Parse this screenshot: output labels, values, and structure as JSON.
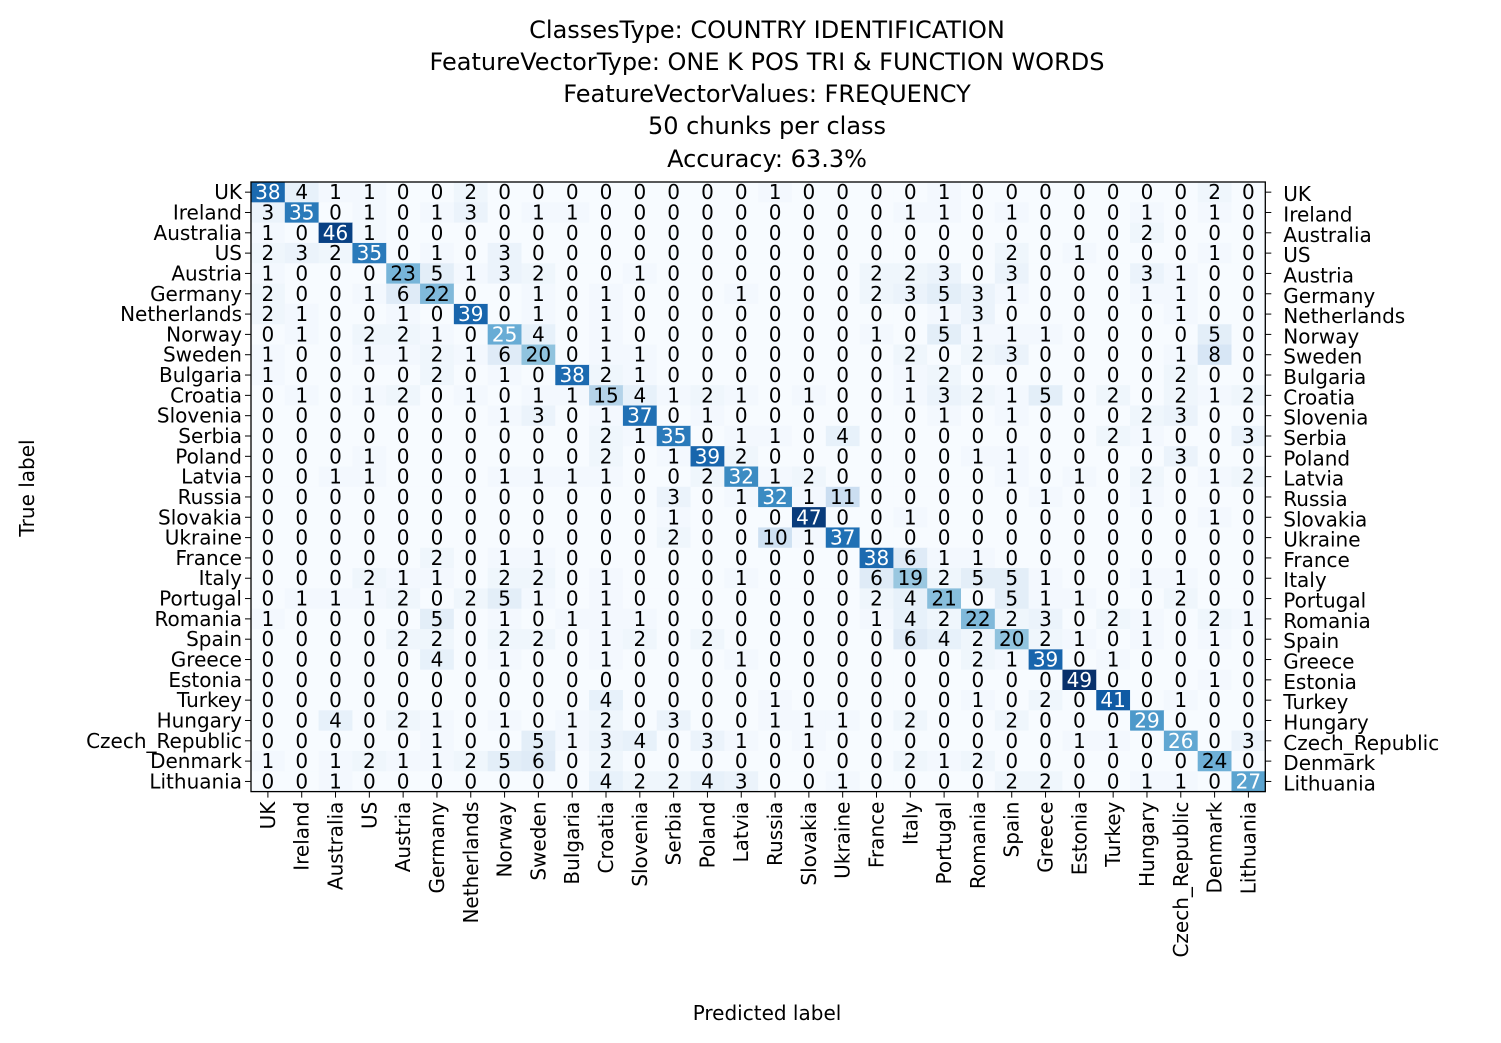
{
  "chart_data": {
    "type": "heatmap",
    "title_lines": [
      "ClassesType: COUNTRY IDENTIFICATION",
      "FeatureVectorType: ONE K POS TRI & FUNCTION WORDS",
      "FeatureVectorValues: FREQUENCY",
      "50 chunks per class",
      "Accuracy: 63.3%"
    ],
    "xlabel": "Predicted label",
    "ylabel": "True label",
    "labels": [
      "UK",
      "Ireland",
      "Australia",
      "US",
      "Austria",
      "Germany",
      "Netherlands",
      "Norway",
      "Sweden",
      "Bulgaria",
      "Croatia",
      "Slovenia",
      "Serbia",
      "Poland",
      "Latvia",
      "Russia",
      "Slovakia",
      "Ukraine",
      "France",
      "Italy",
      "Portugal",
      "Romania",
      "Spain",
      "Greece",
      "Estonia",
      "Turkey",
      "Hungary",
      "Czech_Republic",
      "Denmark",
      "Lithuania"
    ],
    "matrix": [
      [
        38,
        4,
        1,
        1,
        0,
        0,
        2,
        0,
        0,
        0,
        0,
        0,
        0,
        0,
        0,
        1,
        0,
        0,
        0,
        0,
        1,
        0,
        0,
        0,
        0,
        0,
        0,
        0,
        2,
        0
      ],
      [
        3,
        35,
        0,
        1,
        0,
        1,
        3,
        0,
        1,
        1,
        0,
        0,
        0,
        0,
        0,
        0,
        0,
        0,
        0,
        1,
        1,
        0,
        1,
        0,
        0,
        0,
        1,
        0,
        1,
        0
      ],
      [
        1,
        0,
        46,
        1,
        0,
        0,
        0,
        0,
        0,
        0,
        0,
        0,
        0,
        0,
        0,
        0,
        0,
        0,
        0,
        0,
        0,
        0,
        0,
        0,
        0,
        0,
        2,
        0,
        0,
        0
      ],
      [
        2,
        3,
        2,
        35,
        0,
        1,
        0,
        3,
        0,
        0,
        0,
        0,
        0,
        0,
        0,
        0,
        0,
        0,
        0,
        0,
        0,
        0,
        2,
        0,
        1,
        0,
        0,
        0,
        1,
        0
      ],
      [
        1,
        0,
        0,
        0,
        23,
        5,
        1,
        3,
        2,
        0,
        0,
        1,
        0,
        0,
        0,
        0,
        0,
        0,
        2,
        2,
        3,
        0,
        3,
        0,
        0,
        0,
        3,
        1,
        0,
        0
      ],
      [
        2,
        0,
        0,
        1,
        6,
        22,
        0,
        0,
        1,
        0,
        1,
        0,
        0,
        0,
        1,
        0,
        0,
        0,
        2,
        3,
        5,
        3,
        1,
        0,
        0,
        0,
        1,
        1,
        0,
        0
      ],
      [
        2,
        1,
        0,
        0,
        1,
        0,
        39,
        0,
        1,
        0,
        1,
        0,
        0,
        0,
        0,
        0,
        0,
        0,
        0,
        0,
        1,
        3,
        0,
        0,
        0,
        0,
        0,
        1,
        0,
        0
      ],
      [
        0,
        1,
        0,
        2,
        2,
        1,
        0,
        25,
        4,
        0,
        1,
        0,
        0,
        0,
        0,
        0,
        0,
        0,
        1,
        0,
        5,
        1,
        1,
        1,
        0,
        0,
        0,
        0,
        5,
        0
      ],
      [
        1,
        0,
        0,
        1,
        1,
        2,
        1,
        6,
        20,
        0,
        1,
        1,
        0,
        0,
        0,
        0,
        0,
        0,
        0,
        2,
        0,
        2,
        3,
        0,
        0,
        0,
        0,
        1,
        8,
        0
      ],
      [
        1,
        0,
        0,
        0,
        0,
        2,
        0,
        1,
        0,
        38,
        2,
        1,
        0,
        0,
        0,
        0,
        0,
        0,
        0,
        1,
        2,
        0,
        0,
        0,
        0,
        0,
        0,
        2,
        0,
        0
      ],
      [
        0,
        1,
        0,
        1,
        2,
        0,
        1,
        0,
        1,
        1,
        15,
        4,
        1,
        2,
        1,
        0,
        1,
        0,
        0,
        1,
        3,
        2,
        1,
        5,
        0,
        2,
        0,
        2,
        1,
        2
      ],
      [
        0,
        0,
        0,
        0,
        0,
        0,
        0,
        1,
        3,
        0,
        1,
        37,
        0,
        1,
        0,
        0,
        0,
        0,
        0,
        0,
        1,
        0,
        1,
        0,
        0,
        0,
        2,
        3,
        0,
        0
      ],
      [
        0,
        0,
        0,
        0,
        0,
        0,
        0,
        0,
        0,
        0,
        2,
        1,
        35,
        0,
        1,
        1,
        0,
        4,
        0,
        0,
        0,
        0,
        0,
        0,
        0,
        2,
        1,
        0,
        0,
        3
      ],
      [
        0,
        0,
        0,
        1,
        0,
        0,
        0,
        0,
        0,
        0,
        2,
        0,
        1,
        39,
        2,
        0,
        0,
        0,
        0,
        0,
        0,
        1,
        1,
        0,
        0,
        0,
        0,
        3,
        0,
        0
      ],
      [
        0,
        0,
        1,
        1,
        0,
        0,
        0,
        1,
        1,
        1,
        1,
        0,
        0,
        2,
        32,
        1,
        2,
        0,
        0,
        0,
        0,
        0,
        1,
        0,
        1,
        0,
        2,
        0,
        1,
        2
      ],
      [
        0,
        0,
        0,
        0,
        0,
        0,
        0,
        0,
        0,
        0,
        0,
        0,
        3,
        0,
        1,
        32,
        1,
        11,
        0,
        0,
        0,
        0,
        0,
        1,
        0,
        0,
        1,
        0,
        0,
        0
      ],
      [
        0,
        0,
        0,
        0,
        0,
        0,
        0,
        0,
        0,
        0,
        0,
        0,
        1,
        0,
        0,
        0,
        47,
        0,
        0,
        1,
        0,
        0,
        0,
        0,
        0,
        0,
        0,
        0,
        1,
        0
      ],
      [
        0,
        0,
        0,
        0,
        0,
        0,
        0,
        0,
        0,
        0,
        0,
        0,
        2,
        0,
        0,
        10,
        1,
        37,
        0,
        0,
        0,
        0,
        0,
        0,
        0,
        0,
        0,
        0,
        0,
        0
      ],
      [
        0,
        0,
        0,
        0,
        0,
        2,
        0,
        1,
        1,
        0,
        0,
        0,
        0,
        0,
        0,
        0,
        0,
        0,
        38,
        6,
        1,
        1,
        0,
        0,
        0,
        0,
        0,
        0,
        0,
        0
      ],
      [
        0,
        0,
        0,
        2,
        1,
        1,
        0,
        2,
        2,
        0,
        1,
        0,
        0,
        0,
        1,
        0,
        0,
        0,
        6,
        19,
        2,
        5,
        5,
        1,
        0,
        0,
        1,
        1,
        0,
        0
      ],
      [
        0,
        1,
        1,
        1,
        2,
        0,
        2,
        5,
        1,
        0,
        1,
        0,
        0,
        0,
        0,
        0,
        0,
        0,
        2,
        4,
        21,
        0,
        5,
        1,
        1,
        0,
        0,
        2,
        0,
        0
      ],
      [
        1,
        0,
        0,
        0,
        0,
        5,
        0,
        1,
        0,
        1,
        1,
        1,
        0,
        0,
        0,
        0,
        0,
        0,
        1,
        4,
        2,
        22,
        2,
        3,
        0,
        2,
        1,
        0,
        2,
        1
      ],
      [
        0,
        0,
        0,
        0,
        2,
        2,
        0,
        2,
        2,
        0,
        1,
        2,
        0,
        2,
        0,
        0,
        0,
        0,
        0,
        6,
        4,
        2,
        20,
        2,
        1,
        0,
        1,
        0,
        1,
        0
      ],
      [
        0,
        0,
        0,
        0,
        0,
        4,
        0,
        1,
        0,
        0,
        1,
        0,
        0,
        0,
        1,
        0,
        0,
        0,
        0,
        0,
        0,
        2,
        1,
        39,
        0,
        1,
        0,
        0,
        0,
        0
      ],
      [
        0,
        0,
        0,
        0,
        0,
        0,
        0,
        0,
        0,
        0,
        0,
        0,
        0,
        0,
        0,
        0,
        0,
        0,
        0,
        0,
        0,
        0,
        0,
        0,
        49,
        0,
        0,
        0,
        1,
        0
      ],
      [
        0,
        0,
        0,
        0,
        0,
        0,
        0,
        0,
        0,
        0,
        4,
        0,
        0,
        0,
        0,
        1,
        0,
        0,
        0,
        0,
        0,
        1,
        0,
        2,
        0,
        41,
        0,
        1,
        0,
        0
      ],
      [
        0,
        0,
        4,
        0,
        2,
        1,
        0,
        1,
        0,
        1,
        2,
        0,
        3,
        0,
        0,
        1,
        1,
        1,
        0,
        2,
        0,
        0,
        2,
        0,
        0,
        0,
        29,
        0,
        0,
        0
      ],
      [
        0,
        0,
        0,
        0,
        0,
        1,
        0,
        0,
        5,
        1,
        3,
        4,
        0,
        3,
        1,
        0,
        1,
        0,
        0,
        0,
        0,
        0,
        0,
        0,
        1,
        1,
        0,
        26,
        0,
        3
      ],
      [
        1,
        0,
        1,
        2,
        1,
        1,
        2,
        5,
        6,
        0,
        2,
        0,
        0,
        0,
        0,
        0,
        0,
        0,
        0,
        2,
        1,
        2,
        0,
        0,
        0,
        0,
        0,
        0,
        24,
        0
      ],
      [
        0,
        0,
        1,
        0,
        0,
        0,
        0,
        0,
        0,
        0,
        4,
        2,
        2,
        4,
        3,
        0,
        0,
        1,
        0,
        0,
        0,
        0,
        2,
        2,
        0,
        0,
        1,
        1,
        0,
        27
      ]
    ],
    "vmin": 0,
    "vmax": 49,
    "colormap": "Blues",
    "grid": false
  }
}
